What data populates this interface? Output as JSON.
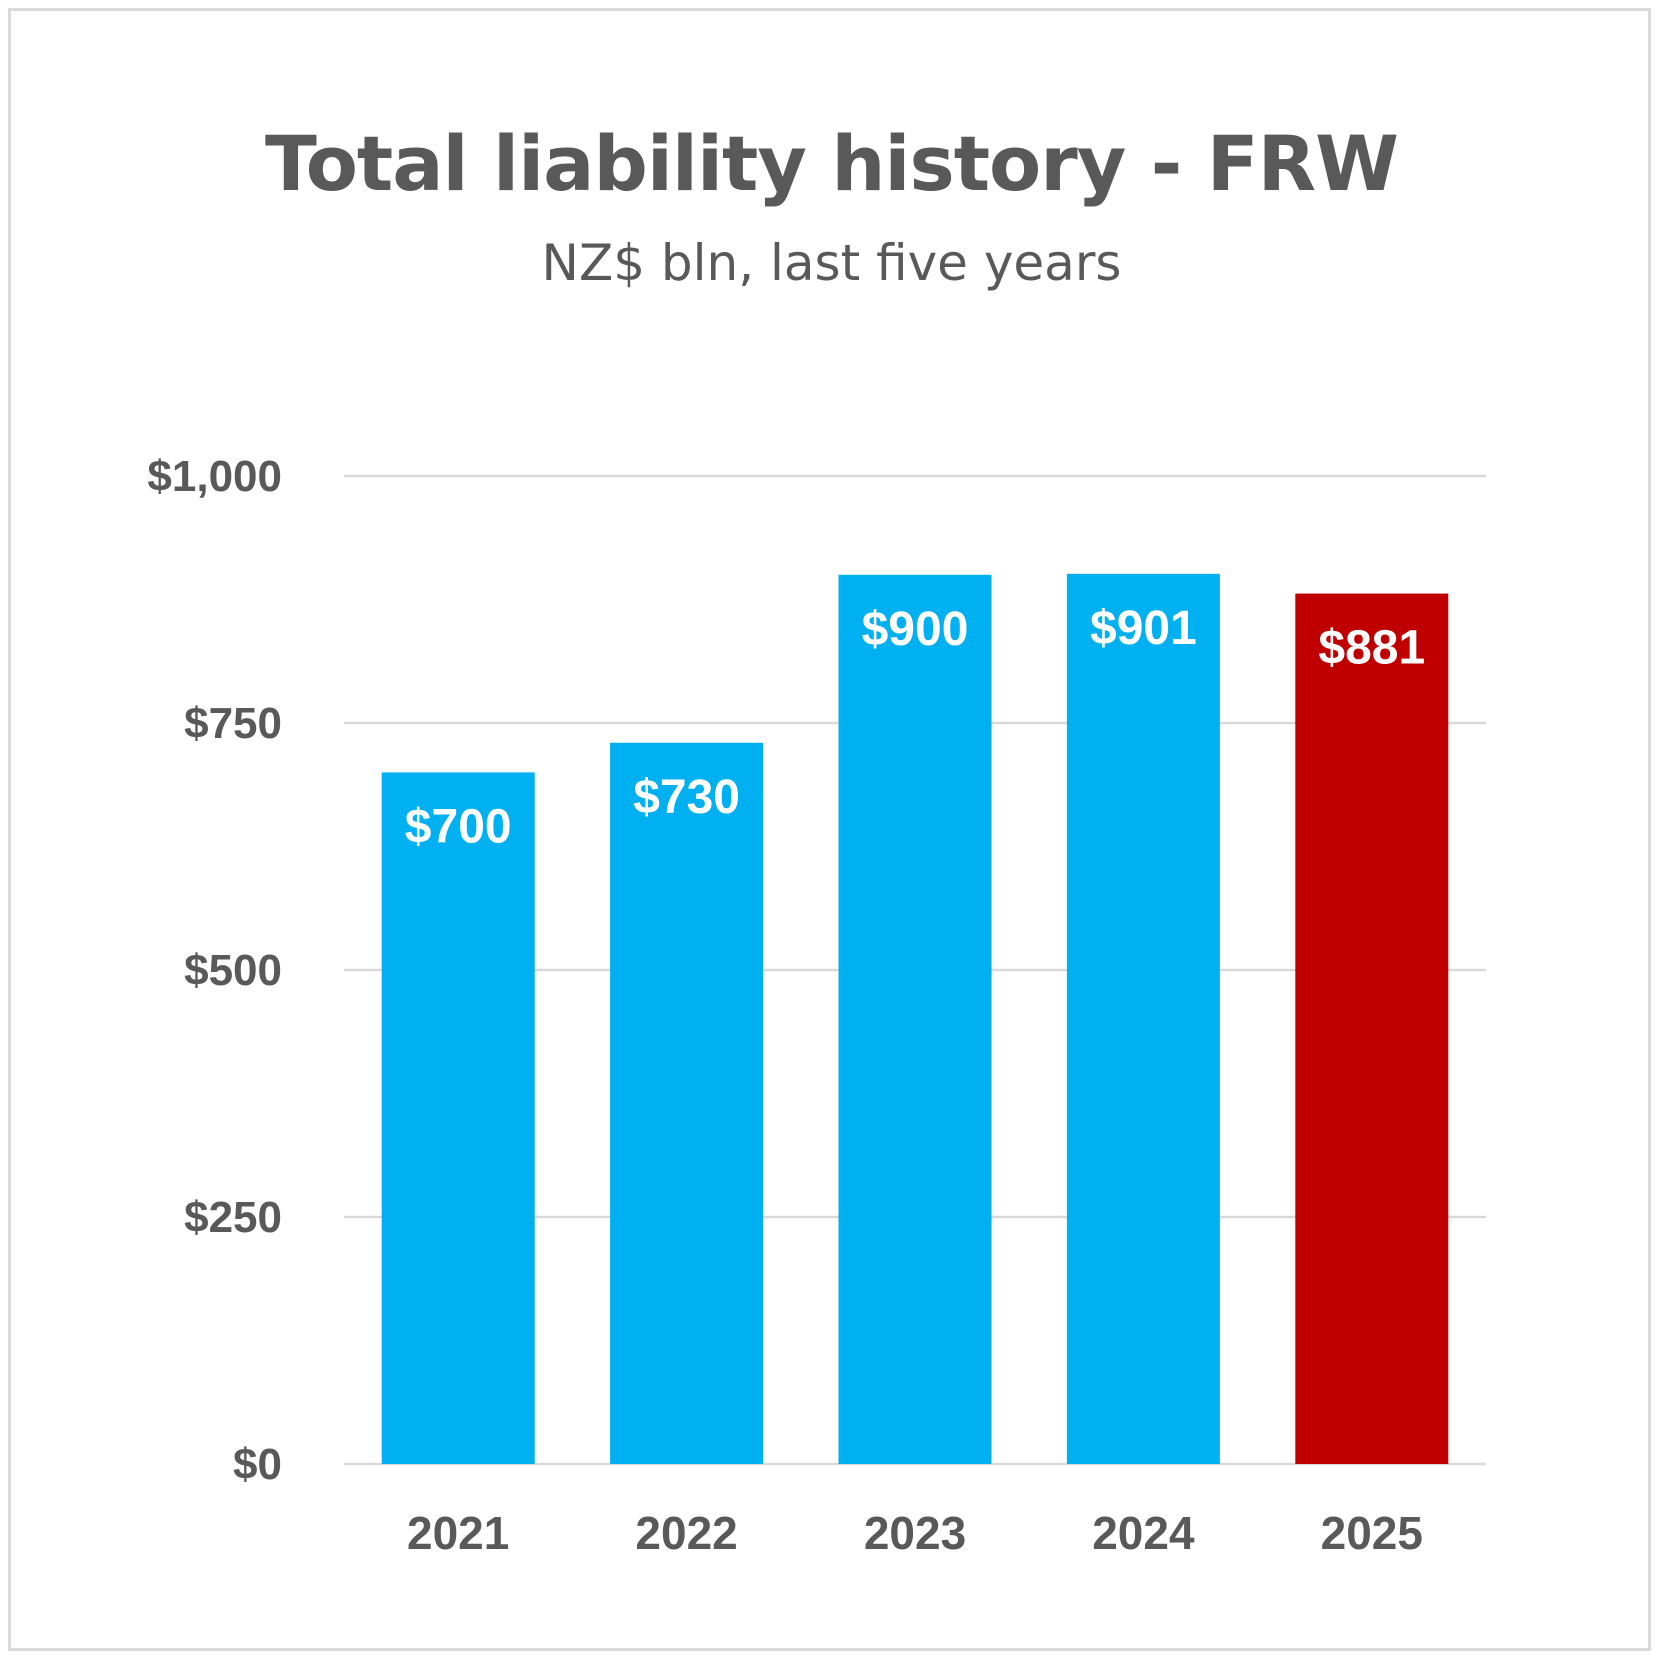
{
  "chart_data": {
    "type": "bar",
    "title": "Total liability history - FRW",
    "subtitle": "NZ$ bln, last five years",
    "categories": [
      "2021",
      "2022",
      "2023",
      "2024",
      "2025"
    ],
    "values": [
      700,
      730,
      900,
      901,
      881
    ],
    "data_labels": [
      "$700",
      "$730",
      "$900",
      "$901",
      "$881"
    ],
    "bar_colors": [
      "#00B0F0",
      "#00B0F0",
      "#00B0F0",
      "#00B0F0",
      "#C00000"
    ],
    "ylim": [
      0,
      1000
    ],
    "yticks": [
      0,
      250,
      500,
      750,
      1000
    ],
    "ytick_labels": [
      "$0",
      "$250",
      "$500",
      "$750",
      "$1,000"
    ],
    "grid": true,
    "legend": "none",
    "xlabel": "",
    "ylabel": ""
  },
  "colors": {
    "text": "#595959",
    "gridline": "#d9d9d9",
    "frame": "#d9d9d9"
  }
}
